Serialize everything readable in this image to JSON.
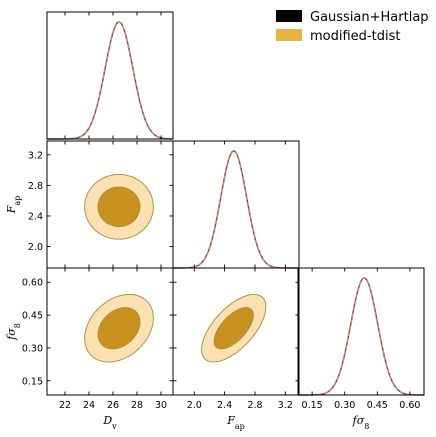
{
  "chart_data": {
    "type": "corner",
    "parameters": [
      {
        "key": "Dv",
        "label_main": "D",
        "label_sub": "v",
        "range": [
          20.5,
          31
        ],
        "ticks": [
          22,
          24,
          26,
          28,
          30
        ],
        "tick_labels": [
          "22",
          "24",
          "26",
          "28",
          "30"
        ],
        "mean": 26.5,
        "sigma": 1.15
      },
      {
        "key": "Fap",
        "label_main": "F",
        "label_sub": "ap",
        "range": [
          1.72,
          3.38
        ],
        "ticks": [
          2.0,
          2.4,
          2.8,
          3.2
        ],
        "tick_labels": [
          "2.0",
          "2.4",
          "2.8",
          "3.2"
        ],
        "mean": 2.52,
        "sigma": 0.17
      },
      {
        "key": "fs8",
        "label_main": "fσ",
        "label_sub": "8",
        "range": [
          0.085,
          0.665
        ],
        "ticks": [
          0.15,
          0.3,
          0.45,
          0.6
        ],
        "tick_labels": [
          "0.15",
          "0.30",
          "0.45",
          "0.60"
        ],
        "mean": 0.39,
        "sigma": 0.062
      }
    ],
    "correlations": {
      "Dv_Fap": 0.0,
      "Dv_fs8": 0.3,
      "Fap_fs8": 0.63
    },
    "series": [
      {
        "name": "Gaussian+Hartlap",
        "color": "#000000",
        "line_color": "#555555",
        "line_style": "solid"
      },
      {
        "name": "modified-tdist",
        "color": "#e8b341",
        "line_color": "#e07a6a",
        "line_style": "dashed"
      }
    ],
    "contour_fills": {
      "inner": "#c9911e",
      "outer": "#fbe0b2"
    },
    "contour_levels_sigma": [
      1.52,
      2.49
    ],
    "legend": {
      "placement": "top-right"
    }
  }
}
